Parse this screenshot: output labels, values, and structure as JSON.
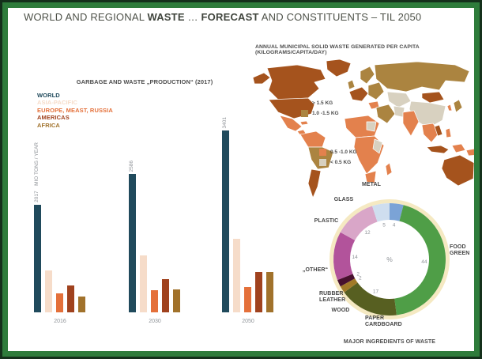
{
  "title": {
    "part1": "WORLD AND REGIONAL ",
    "bold1": "WASTE",
    "part2": " … ",
    "bold2": "FORECAST",
    "part3": " AND CONSTITUENTS – TIL 2050"
  },
  "map": {
    "palette": {
      "gt_1_5": "#a5531d",
      "kg_1_0_1_5": "#ab8440",
      "kg_0_5_1_0": "#e3814d",
      "lt_0_5": "#d8d1c0"
    }
  },
  "chart_data": [
    {
      "type": "bar",
      "title": "GARBAGE AND WASTE „PRODUCTION“ (2017)",
      "unit": "MIO TONS / YEAR",
      "categories": [
        "2016",
        "2030",
        "2050"
      ],
      "series": [
        {
          "name": "WORLD",
          "color": "#204a5c",
          "values": [
            2017,
            2586,
            3401
          ],
          "value_labels": [
            "2017",
            "2586",
            "3401"
          ]
        },
        {
          "name": "ASIA-PACIFIC",
          "color": "#f6dcc9",
          "values": [
            790,
            1070,
            1380
          ]
        },
        {
          "name": "EUROPE, MEAST, RUSSIA",
          "color": "#e4703a",
          "values": [
            360,
            420,
            480
          ]
        },
        {
          "name": "AMERICAS",
          "color": "#a0421e",
          "values": [
            505,
            625,
            755
          ]
        },
        {
          "name": "AFRICA",
          "color": "#a1722b",
          "values": [
            300,
            435,
            760
          ]
        }
      ],
      "ylim": [
        0,
        3600
      ],
      "grid": false,
      "legend_position": "top-left"
    },
    {
      "type": "choropleth-map",
      "title": "ANNUAL MUNICIPAL SOLID WASTE GENERATED PER CAPITA (KILOGRAMS/CAPITA/DAY)",
      "classes": [
        {
          "label": "> 1.5 KG",
          "color": "#a5531d"
        },
        {
          "label": "1.0 -1.5 KG",
          "color": "#ab8440"
        },
        {
          "label": "0.5 -1.0 KG",
          "color": "#e3814d"
        },
        {
          "label": "< 0.5 KG",
          "color": "#d8d1c0"
        }
      ]
    },
    {
      "type": "pie",
      "subtype": "donut",
      "title": "MAJOR INGREDIENTS OF WASTE",
      "center_label": "%",
      "unit": "%",
      "slices": [
        {
          "label": "METAL",
          "value": 4,
          "color": "#7ba3d6"
        },
        {
          "label": "FOOD GREEN",
          "value": 44,
          "color": "#4f9e47"
        },
        {
          "label": "PAPER CARDBOARD",
          "value": 17,
          "color": "#575f21"
        },
        {
          "label": "WOOD",
          "value": 2,
          "color": "#a17a28"
        },
        {
          "label": "RUBBER LEATHER",
          "value": 2,
          "color": "#47112e"
        },
        {
          "label": "„OTHER“",
          "value": 14,
          "color": "#b2539b"
        },
        {
          "label": "PLASTIC",
          "value": 12,
          "color": "#d9a6c8"
        },
        {
          "label": "GLASS",
          "value": 5,
          "color": "#cfdeef"
        }
      ],
      "start_angle": "12 o'clock, clockwise"
    }
  ]
}
